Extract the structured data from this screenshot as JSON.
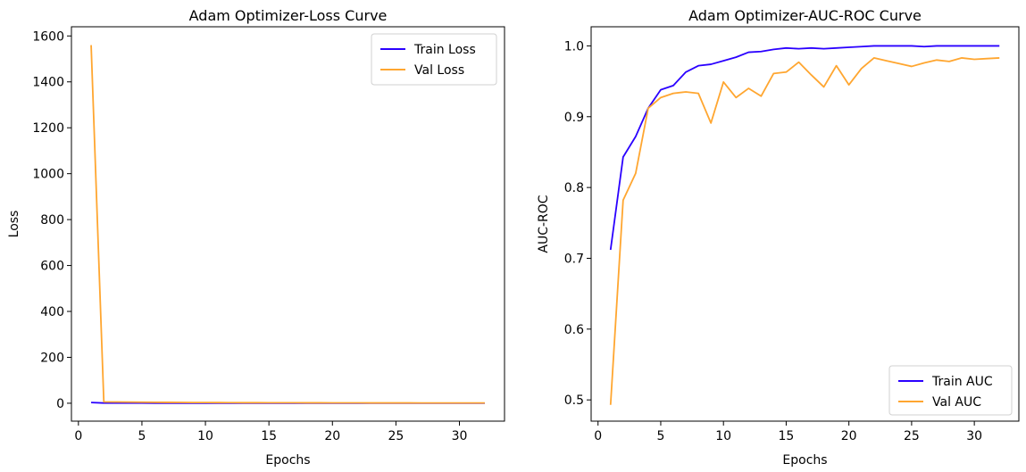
{
  "colors": {
    "train": "#2a00ff",
    "val": "#ffa630",
    "axes": "#000000",
    "legend_border": "#d0d0d0"
  },
  "chart_data": [
    {
      "type": "line",
      "title": "Adam Optimizer-Loss Curve",
      "xlabel": "Epochs",
      "ylabel": "Loss",
      "xlim": [
        -0.55,
        33.55
      ],
      "ylim": [
        -78,
        1640
      ],
      "xticks": [
        0,
        5,
        10,
        15,
        20,
        25,
        30
      ],
      "yticks": [
        0,
        200,
        400,
        600,
        800,
        1000,
        1200,
        1400,
        1600
      ],
      "legend_position": "top-right",
      "grid": false,
      "x": [
        1,
        2,
        3,
        4,
        5,
        6,
        7,
        8,
        9,
        10,
        11,
        12,
        13,
        14,
        15,
        16,
        17,
        18,
        19,
        20,
        21,
        22,
        23,
        24,
        25,
        26,
        27,
        28,
        29,
        30,
        31,
        32
      ],
      "series": [
        {
          "name": "Train Loss",
          "color_key": "train",
          "values": [
            3,
            0.9,
            0.8,
            0.7,
            0.6,
            0.55,
            0.5,
            0.45,
            0.4,
            0.38,
            0.36,
            0.35,
            0.33,
            0.32,
            0.3,
            0.29,
            0.28,
            0.27,
            0.26,
            0.25,
            0.24,
            0.23,
            0.22,
            0.22,
            0.21,
            0.2,
            0.2,
            0.19,
            0.19,
            0.18,
            0.18,
            0.18
          ]
        },
        {
          "name": "Val Loss",
          "color_key": "val",
          "values": [
            1560,
            6,
            5.5,
            5,
            4.5,
            4,
            3.8,
            3.5,
            3.2,
            3.0,
            2.8,
            2.6,
            2.5,
            2.4,
            2.3,
            2.2,
            2.1,
            2.0,
            1.9,
            1.8,
            1.7,
            1.6,
            1.5,
            1.5,
            1.4,
            1.4,
            1.3,
            1.3,
            1.2,
            1.2,
            1.2,
            1.1
          ]
        }
      ]
    },
    {
      "type": "line",
      "title": "Adam Optimizer-AUC-ROC Curve",
      "xlabel": "Epochs",
      "ylabel": "AUC-ROC",
      "xlim": [
        -0.55,
        33.55
      ],
      "ylim": [
        0.47,
        1.027
      ],
      "xticks": [
        0,
        5,
        10,
        15,
        20,
        25,
        30
      ],
      "yticks": [
        0.5,
        0.6,
        0.7,
        0.8,
        0.9,
        1.0
      ],
      "ytick_labels": [
        "0.5",
        "0.6",
        "0.7",
        "0.8",
        "0.9",
        "1.0"
      ],
      "legend_position": "bottom-right",
      "grid": false,
      "x": [
        1,
        2,
        3,
        4,
        5,
        6,
        7,
        8,
        9,
        10,
        11,
        12,
        13,
        14,
        15,
        16,
        17,
        18,
        19,
        20,
        21,
        22,
        23,
        24,
        25,
        26,
        27,
        28,
        29,
        30,
        31,
        32
      ],
      "series": [
        {
          "name": "Train AUC",
          "color_key": "train",
          "values": [
            0.712,
            0.843,
            0.872,
            0.912,
            0.938,
            0.944,
            0.963,
            0.972,
            0.974,
            0.979,
            0.984,
            0.991,
            0.992,
            0.995,
            0.997,
            0.996,
            0.997,
            0.996,
            0.997,
            0.998,
            0.999,
            1.0,
            1.0,
            1.0,
            1.0,
            0.999,
            1.0,
            1.0,
            1.0,
            1.0,
            1.0,
            1.0
          ]
        },
        {
          "name": "Val AUC",
          "color_key": "val",
          "values": [
            0.493,
            0.782,
            0.82,
            0.912,
            0.927,
            0.933,
            0.935,
            0.933,
            0.891,
            0.949,
            0.927,
            0.94,
            0.929,
            0.961,
            0.963,
            0.977,
            0.959,
            0.942,
            0.972,
            0.945,
            0.968,
            0.983,
            0.979,
            0.975,
            0.971,
            0.976,
            0.98,
            0.978,
            0.983,
            0.981,
            0.982,
            0.983
          ]
        }
      ]
    }
  ]
}
